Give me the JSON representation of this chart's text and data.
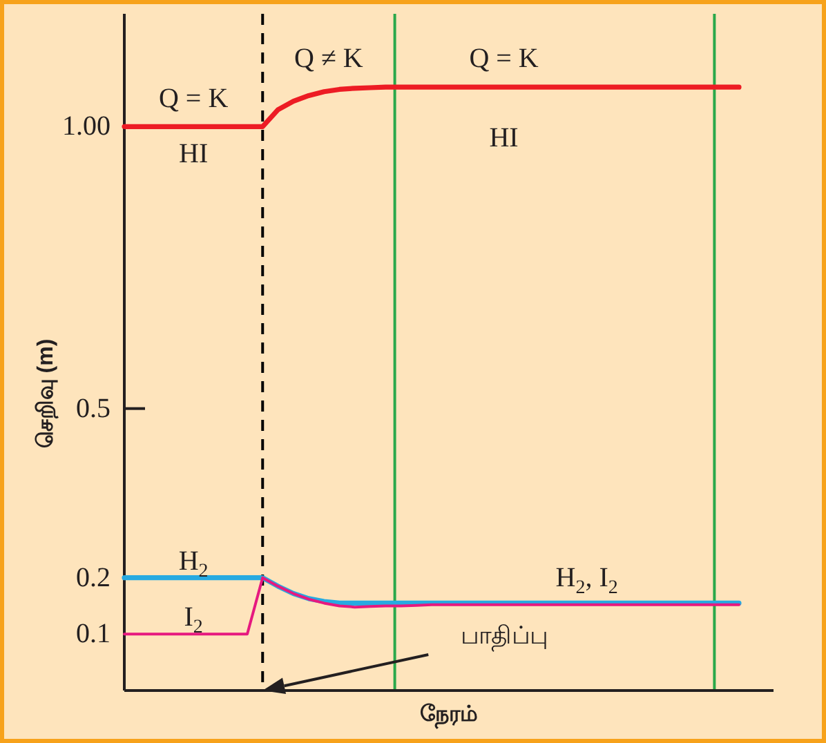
{
  "chart_data": {
    "type": "line",
    "xlabel": "நேரம்",
    "ylabel": "செறிவு (m)",
    "ylim": [
      0,
      1.2
    ],
    "yticks": [
      0.1,
      0.2,
      0.5,
      {
        "value": 1,
        "label": "1.00"
      }
    ],
    "tick_labels": "y",
    "categories": [
      null,
      null,
      null,
      null,
      null,
      null,
      null,
      null,
      null,
      null,
      null,
      null,
      null,
      null,
      null,
      null,
      null,
      null,
      null,
      null,
      null,
      null,
      null,
      null,
      null,
      null,
      null,
      null,
      null,
      null,
      null,
      null,
      null,
      null,
      null,
      null,
      null,
      null,
      null,
      null,
      null
    ],
    "series": [
      {
        "name": "HI",
        "color": "#ed1c24",
        "values": [
          1,
          1,
          1,
          1,
          1,
          1,
          1,
          1,
          1,
          1,
          1.03,
          1.045,
          1.055,
          1.062,
          1.066,
          1.068,
          1.069,
          1.07,
          1.07,
          1.07,
          1.07,
          1.07,
          1.07,
          1.07,
          1.07,
          1.07,
          1.07,
          1.07,
          1.07,
          1.07,
          1.07,
          1.07,
          1.07,
          1.07,
          1.07,
          1.07,
          1.07,
          1.07,
          1.07,
          1.07,
          1.07
        ]
      },
      {
        "name": "H$_{2}$",
        "color": "#27aae1",
        "values": [
          0.2,
          0.2,
          0.2,
          0.2,
          0.2,
          0.2,
          0.2,
          0.2,
          0.2,
          0.2,
          0.185,
          0.172,
          0.163,
          0.158,
          0.155,
          0.155,
          0.155,
          0.155,
          0.155,
          0.155,
          0.155,
          0.155,
          0.155,
          0.155,
          0.155,
          0.155,
          0.155,
          0.155,
          0.155,
          0.155,
          0.155,
          0.155,
          0.155,
          0.155,
          0.155,
          0.155,
          0.155,
          0.155,
          0.155,
          0.155,
          0.155
        ]
      },
      {
        "name": "I$_{2}$",
        "color": "#e6197f",
        "values": [
          0.1,
          0.1,
          0.1,
          0.1,
          0.1,
          0.1,
          0.1,
          0.1,
          0.1,
          0.2,
          0.185,
          0.172,
          0.162,
          0.155,
          0.15,
          0.148,
          0.149,
          0.15,
          0.15,
          0.151,
          0.152,
          0.152,
          0.152,
          0.152,
          0.152,
          0.152,
          0.152,
          0.152,
          0.152,
          0.152,
          0.152,
          0.152,
          0.152,
          0.152,
          0.152,
          0.152,
          0.152,
          0.152,
          0.152,
          0.152,
          0.152
        ]
      }
    ],
    "annotations": [
      "Q = K",
      "Q ≠ K",
      "Q = K",
      "HI",
      "H$_{2}$, I$_{2}$",
      "பாதிப்பு"
    ]
  }
}
